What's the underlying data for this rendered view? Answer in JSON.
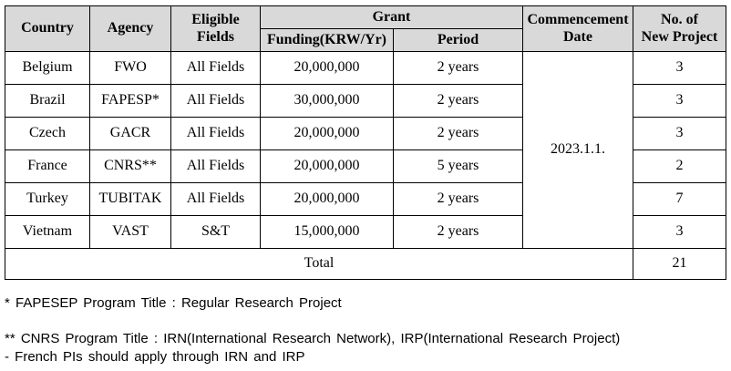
{
  "table": {
    "headers": {
      "country": "Country",
      "agency": "Agency",
      "eligible_fields": [
        "Eligible",
        "Fields"
      ],
      "grant": "Grant",
      "funding": "Funding(KRW/Yr)",
      "period": "Period",
      "commencement_date": [
        "Commencement",
        "Date"
      ],
      "new_projects": [
        "No. of",
        "New Project"
      ]
    },
    "rows": [
      {
        "country": "Belgium",
        "agency": "FWO",
        "fields": "All Fields",
        "funding": "20,000,000",
        "period": "2 years",
        "projects": "3"
      },
      {
        "country": "Brazil",
        "agency": "FAPESP*",
        "fields": "All Fields",
        "funding": "30,000,000",
        "period": "2 years",
        "projects": "3"
      },
      {
        "country": "Czech",
        "agency": "GACR",
        "fields": "All Fields",
        "funding": "20,000,000",
        "period": "2 years",
        "projects": "3"
      },
      {
        "country": "France",
        "agency": "CNRS**",
        "fields": "All Fields",
        "funding": "20,000,000",
        "period": "5 years",
        "projects": "2"
      },
      {
        "country": "Turkey",
        "agency": "TUBITAK",
        "fields": "All Fields",
        "funding": "20,000,000",
        "period": "2 years",
        "projects": "7"
      },
      {
        "country": "Vietnam",
        "agency": "VAST",
        "fields": "S&T",
        "funding": "15,000,000",
        "period": "2 years",
        "projects": "3"
      }
    ],
    "commencement_date_value": "2023.1.1.",
    "total_label": "Total",
    "total_value": "21"
  },
  "notes": {
    "note1": "* FAPESEP Program Title : Regular Research Project",
    "note2": "** CNRS Program Title : IRN(International Research Network), IRP(International Research Project)",
    "note3": "- French PIs should apply through IRN and IRP"
  }
}
